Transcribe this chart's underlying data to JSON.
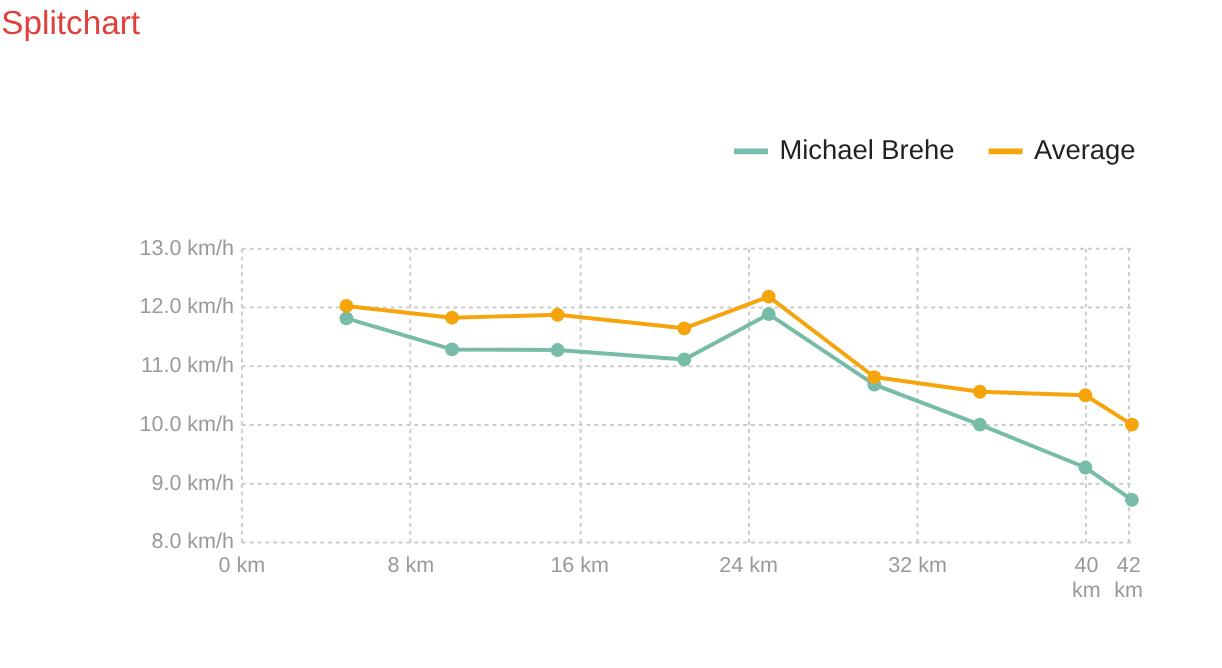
{
  "chart_data": {
    "type": "line",
    "title": "Splitchart",
    "legend": "top right",
    "grid": true,
    "marker": "circle",
    "line_style": "solid",
    "series": [
      {
        "name": "Michael Brehe",
        "color": "#76bca8",
        "x": [
          5,
          10,
          15,
          21,
          25,
          30,
          35,
          40,
          42.2
        ],
        "values": [
          11.8,
          11.27,
          11.26,
          11.1,
          11.87,
          10.67,
          9.99,
          9.26,
          8.71
        ]
      },
      {
        "name": "Average",
        "color": "#f5a40c",
        "x": [
          5,
          10,
          15,
          21,
          25,
          30,
          35,
          40,
          42.2
        ],
        "values": [
          12.01,
          11.81,
          11.86,
          11.63,
          12.17,
          10.8,
          10.55,
          10.49,
          9.99
        ]
      }
    ],
    "xlim": [
      0,
      42.2
    ],
    "xticks": [
      {
        "value": 0,
        "label": "0 km"
      },
      {
        "value": 8,
        "label": "8 km"
      },
      {
        "value": 16,
        "label": "16 km"
      },
      {
        "value": 24,
        "label": "24 km"
      },
      {
        "value": 32,
        "label": "32 km"
      },
      {
        "value": 40,
        "label": "40 km"
      },
      {
        "value": 42,
        "label": "42 km"
      }
    ],
    "ylim": [
      8,
      13
    ],
    "yticks": [
      {
        "value": 8,
        "label": "8.0 km/h"
      },
      {
        "value": 9,
        "label": "9.0 km/h"
      },
      {
        "value": 10,
        "label": "10.0 km/h"
      },
      {
        "value": 11,
        "label": "11.0 km/h"
      },
      {
        "value": 12,
        "label": "12.0 km/h"
      },
      {
        "value": 13,
        "label": "13.0 km/h"
      }
    ]
  }
}
